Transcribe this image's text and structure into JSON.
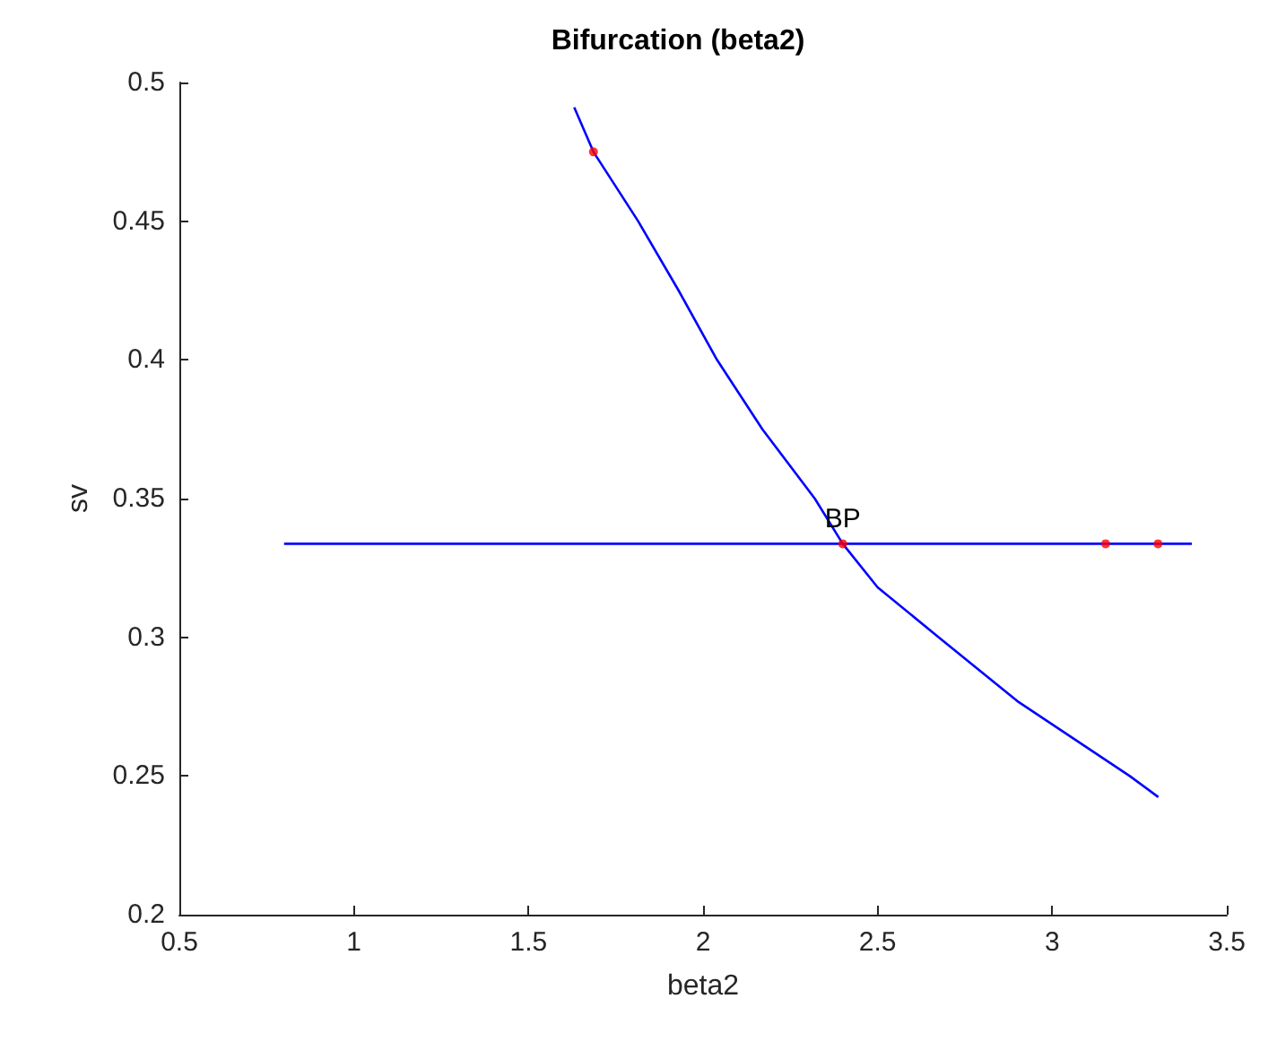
{
  "chart_data": {
    "type": "line",
    "title": "Bifurcation (beta2)",
    "xlabel": "beta2",
    "ylabel": "sv",
    "series": [
      {
        "color": "#0000ff",
        "x": [
          1.631,
          1.686,
          1.814,
          1.93,
          2.04,
          2.17,
          2.32,
          2.4,
          2.5,
          2.675,
          2.9,
          3.222,
          3.304
        ],
        "values": [
          0.491,
          0.475,
          0.45,
          0.425,
          0.4,
          0.375,
          0.35,
          0.3337,
          0.318,
          0.3,
          0.277,
          0.25,
          0.2424
        ]
      },
      {
        "color": "#0000ff",
        "x": [
          0.8,
          3.4
        ],
        "values": [
          0.3337,
          0.3337
        ]
      },
      {
        "type": "scatter",
        "marker": "circle",
        "color": "#ff0000",
        "x": [
          1.686,
          2.4,
          3.153,
          3.303
        ],
        "values": [
          0.475,
          0.3337,
          0.3337,
          0.3337
        ]
      }
    ],
    "annotations": [
      {
        "text": "BP",
        "x": 2.4,
        "y": 0.3337
      }
    ],
    "xlim": [
      0.5,
      3.5
    ],
    "xticks": [
      0.5,
      1,
      1.5,
      2,
      2.5,
      3,
      3.5
    ],
    "ylim": [
      0.2,
      0.5
    ],
    "yticks": [
      0.2,
      0.25,
      0.3,
      0.35,
      0.4,
      0.45,
      0.5
    ],
    "grid": false,
    "marker": "none",
    "line_style": "solid"
  }
}
